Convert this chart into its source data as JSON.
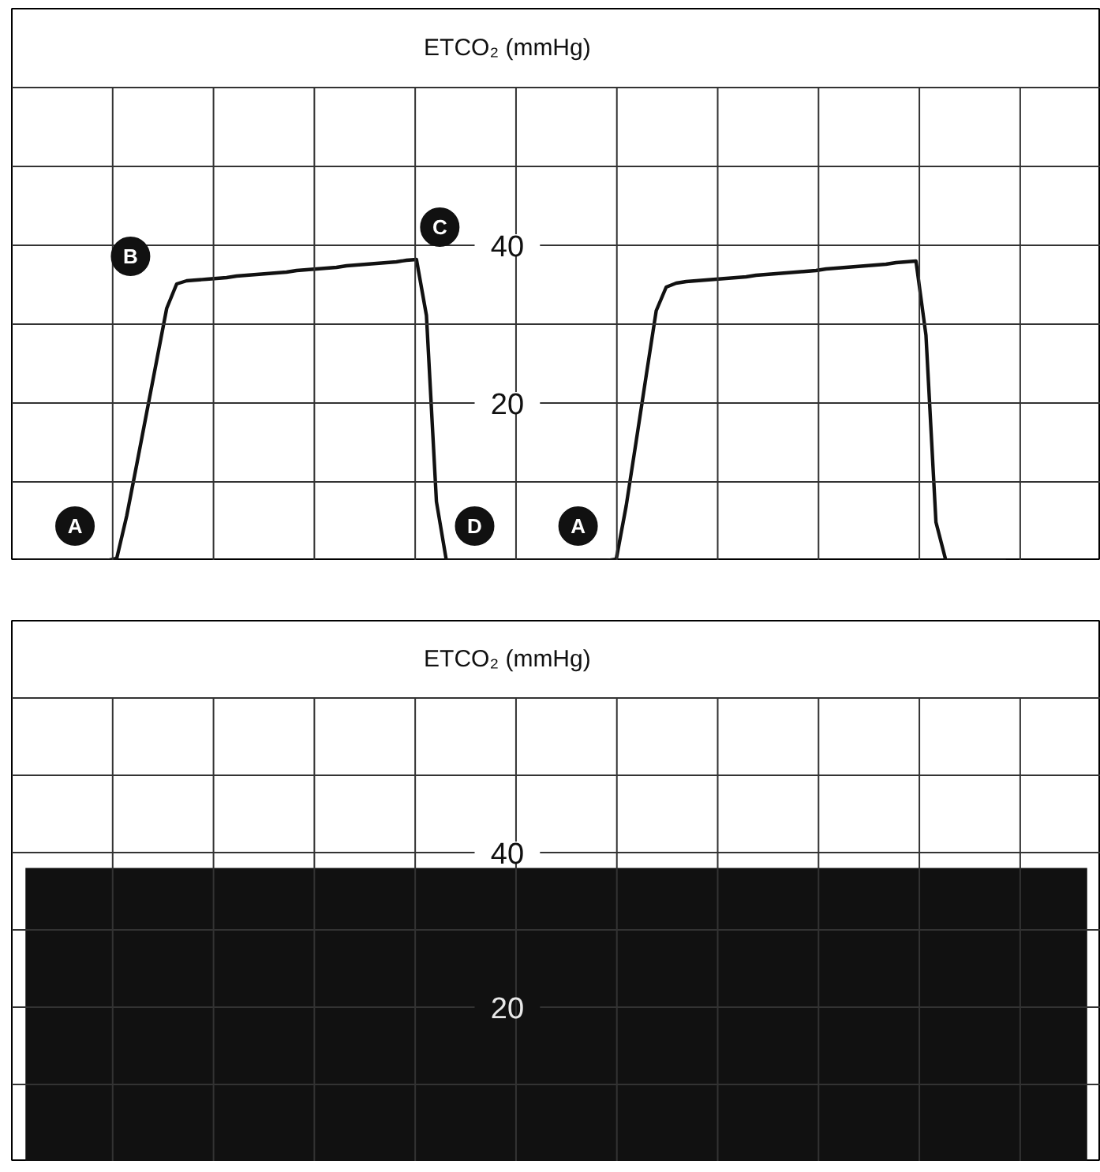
{
  "chart_data": [
    {
      "type": "line",
      "title": "ETCO₂ (mmHg)",
      "tick_labels": "y",
      "grid": true,
      "marker": "none",
      "line_style": "solid",
      "categories": [
        null,
        null,
        null,
        null,
        null,
        null,
        null,
        null,
        null,
        null,
        null,
        null,
        null,
        null,
        null,
        null,
        null,
        null,
        null,
        null,
        null,
        null,
        null,
        null,
        null,
        null,
        null,
        null,
        null,
        null,
        null,
        null,
        null,
        null,
        null,
        null,
        null,
        null,
        null,
        null,
        null,
        null,
        null,
        null,
        null,
        null,
        null,
        null,
        null,
        null,
        null,
        null,
        null,
        null,
        null,
        null,
        null,
        null,
        null,
        null,
        null,
        null,
        null,
        null,
        null,
        null,
        null,
        null,
        null,
        null,
        null,
        null,
        null,
        null,
        null,
        null,
        null,
        null,
        null,
        null,
        null,
        null,
        null,
        null,
        null,
        null,
        null,
        null,
        null,
        null,
        null,
        null,
        null,
        null,
        null,
        null,
        null,
        null,
        null,
        null,
        null,
        null,
        null,
        null,
        null,
        null,
        null,
        null,
        null
      ],
      "series": [
        {
          "color": "#111111",
          "values": [
            0,
            0,
            0,
            0,
            0,
            0,
            0,
            0,
            0,
            0,
            0.3,
            5.7,
            12.2,
            18.8,
            25.4,
            32.0,
            35.1,
            35.5,
            35.6,
            35.7,
            35.8,
            35.9,
            36.1,
            36.2,
            36.3,
            36.4,
            36.5,
            36.6,
            36.8,
            36.9,
            37.0,
            37.1,
            37.2,
            37.4,
            37.5,
            37.6,
            37.7,
            37.8,
            37.9,
            38.1,
            38.2,
            31.1,
            7.5,
            0,
            0,
            0,
            0,
            0,
            0,
            0,
            0,
            0,
            0,
            0,
            0,
            0,
            0,
            0,
            0,
            0,
            0.2,
            7.0,
            15.2,
            23.5,
            31.7,
            34.7,
            35.2,
            35.4,
            35.5,
            35.6,
            35.7,
            35.8,
            35.9,
            36.0,
            36.2,
            36.3,
            36.4,
            36.5,
            36.6,
            36.7,
            36.8,
            37.0,
            37.1,
            37.2,
            37.3,
            37.4,
            37.5,
            37.6,
            37.8,
            37.9,
            38.0,
            28.6,
            4.9,
            0,
            0,
            0,
            0,
            0,
            0,
            0,
            null,
            null,
            null,
            null,
            null,
            null,
            null,
            null,
            null
          ]
        }
      ],
      "ylim": [
        0,
        70
      ],
      "yticks": [
        {
          "value": 0,
          "label": null
        },
        {
          "value": 10,
          "label": null
        },
        20,
        {
          "value": 30,
          "label": null
        },
        40,
        {
          "value": 50,
          "label": null
        },
        {
          "value": 60,
          "label": null
        }
      ],
      "annotations": [
        {
          "text": "A",
          "y": 4.4
        },
        {
          "text": "B",
          "y": 38.6
        },
        {
          "text": "C",
          "y": 42.3
        },
        {
          "text": "D",
          "y": 4.4
        },
        {
          "text": "A",
          "y": 4.4
        }
      ]
    },
    {
      "type": "area",
      "title": "ETCO₂ (mmHg)",
      "tick_labels": "y",
      "grid": true,
      "categories": [
        null,
        null,
        null,
        null,
        null,
        null,
        null,
        null,
        null,
        null,
        null,
        null,
        null,
        null,
        null,
        null,
        null,
        null,
        null,
        null,
        null,
        null,
        null,
        null,
        null,
        null,
        null,
        null,
        null,
        null,
        null,
        null,
        null,
        null,
        null,
        null,
        null,
        null,
        null,
        null
      ],
      "series": [
        {
          "color": "#111111",
          "values": [
            38,
            38,
            38,
            38,
            38,
            38,
            38,
            38,
            38,
            38,
            38,
            38,
            38,
            38,
            38,
            38,
            38,
            38,
            38,
            38,
            38,
            38,
            38,
            38,
            38,
            38,
            38,
            38,
            38,
            38,
            38,
            38,
            38,
            38,
            38,
            38,
            38,
            38,
            38,
            38
          ]
        }
      ],
      "ylim": [
        0,
        70
      ],
      "yticks": [
        {
          "value": 0,
          "label": null
        },
        {
          "value": 10,
          "label": null
        },
        20,
        {
          "value": 30,
          "label": null
        },
        40,
        {
          "value": 50,
          "label": null
        },
        {
          "value": 60,
          "label": null
        }
      ]
    }
  ]
}
